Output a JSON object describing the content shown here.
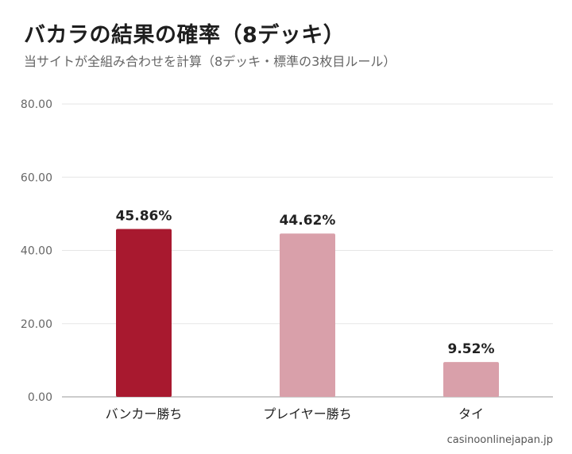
{
  "header": {
    "title": "バカラの結果の確率（8デッキ）",
    "subtitle": "当サイトが全組み合わせを計算（8デッキ・標準の3枚目ルール）"
  },
  "chart_data": {
    "type": "bar",
    "categories": [
      "バンカー勝ち",
      "プレイヤー勝ち",
      "タイ"
    ],
    "values": [
      45.86,
      44.62,
      9.52
    ],
    "data_labels": [
      "45.86%",
      "44.62%",
      "9.52%"
    ],
    "bar_colors": [
      "#a8192f",
      "#d9a0aa",
      "#d9a0aa"
    ],
    "ylim": [
      0,
      80
    ],
    "yticks": [
      0,
      20,
      40,
      60,
      80
    ],
    "ytick_labels": [
      "0.00",
      "20.00",
      "40.00",
      "60.00",
      "80.00"
    ],
    "grid": true
  },
  "footer": {
    "credit": "casinoonlinejapan.jp"
  }
}
